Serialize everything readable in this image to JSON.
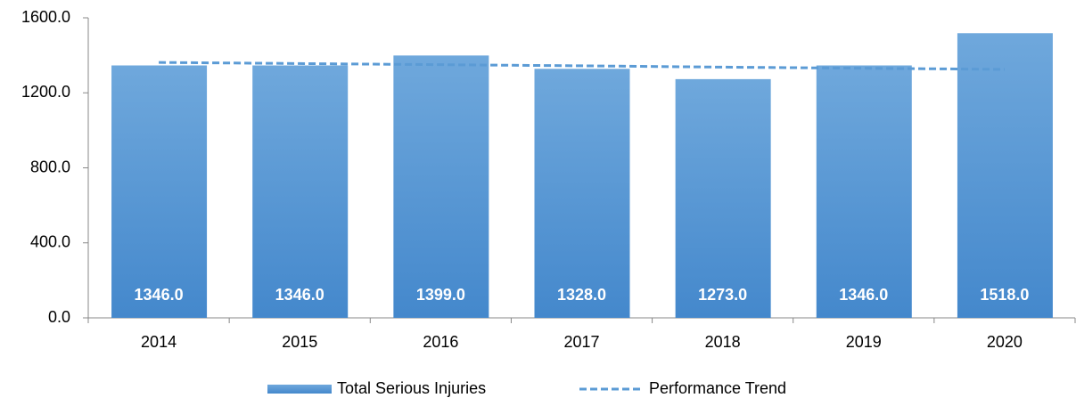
{
  "chart_data": {
    "type": "bar",
    "categories": [
      "2014",
      "2015",
      "2016",
      "2017",
      "2018",
      "2019",
      "2020"
    ],
    "series": [
      {
        "name": "Total Serious Injuries",
        "color": "#5b9bd5",
        "values": [
          1346,
          1346,
          1399,
          1328,
          1273,
          1346,
          1518
        ],
        "value_labels": [
          "1346.0",
          "1346.0",
          "1399.0",
          "1328.0",
          "1273.0",
          "1346.0",
          "1518.0"
        ]
      },
      {
        "name": "Performance Trend",
        "type": "line",
        "color": "#5b9bd5",
        "dashed": true,
        "values": [
          1362,
          1356,
          1350,
          1344,
          1337,
          1331,
          1325
        ]
      }
    ],
    "ylim": [
      0,
      1600
    ],
    "yticks": [
      {
        "value": 0,
        "label": "0.0"
      },
      {
        "value": 400,
        "label": "400.0"
      },
      {
        "value": 800,
        "label": "800.0"
      },
      {
        "value": 1200,
        "label": "1200.0"
      },
      {
        "value": 1600,
        "label": "1600.0"
      }
    ],
    "legend": "bottom"
  }
}
